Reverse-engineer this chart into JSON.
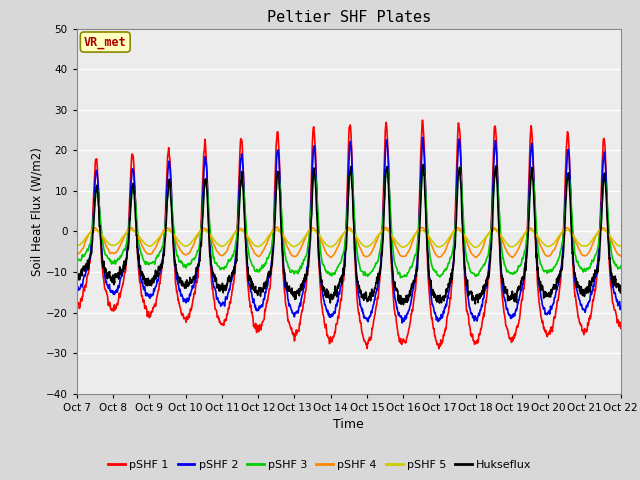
{
  "title": "Peltier SHF Plates",
  "xlabel": "Time",
  "ylabel": "Soil Heat Flux (W/m2)",
  "xlim": [
    0,
    360
  ],
  "ylim": [
    -40,
    50
  ],
  "yticks": [
    -40,
    -30,
    -20,
    -10,
    0,
    10,
    20,
    30,
    40,
    50
  ],
  "xtick_labels": [
    "Oct 7",
    "Oct 8",
    "Oct 9",
    "Oct 10",
    "Oct 11",
    "Oct 12",
    "Oct 13",
    "Oct 14",
    "Oct 15",
    "Oct 16",
    "Oct 17",
    "Oct 18",
    "Oct 19",
    "Oct 20",
    "Oct 21",
    "Oct 22"
  ],
  "annotation_text": "VR_met",
  "annotation_color": "#AA0000",
  "annotation_bg": "#FFFFC0",
  "annotation_edge": "#888800",
  "series_colors": [
    "#FF0000",
    "#0000EE",
    "#00CC00",
    "#FF8800",
    "#CCCC00",
    "#000000"
  ],
  "series_names": [
    "pSHF 1",
    "pSHF 2",
    "pSHF 3",
    "pSHF 4",
    "pSHF 5",
    "Hukseflux"
  ],
  "line_width": 1.2,
  "bg_color": "#D8D8D8",
  "plot_bg": "#ECECEC",
  "grid_color": "#FFFFFF",
  "n_points": 7201,
  "period": 24.0,
  "total_hours": 360
}
